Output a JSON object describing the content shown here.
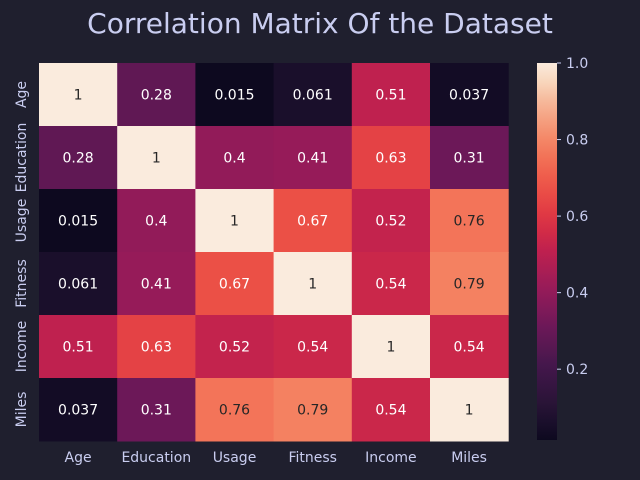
{
  "chart_data": {
    "type": "heatmap",
    "title": "Correlation Matrix Of the Dataset",
    "rows": [
      "Age",
      "Education",
      "Usage",
      "Fitness",
      "Income",
      "Miles"
    ],
    "columns": [
      "Age",
      "Education",
      "Usage",
      "Fitness",
      "Income",
      "Miles"
    ],
    "values": [
      [
        1,
        0.28,
        0.015,
        0.061,
        0.51,
        0.037
      ],
      [
        0.28,
        1,
        0.4,
        0.41,
        0.63,
        0.31
      ],
      [
        0.015,
        0.4,
        1,
        0.67,
        0.52,
        0.76
      ],
      [
        0.061,
        0.41,
        0.67,
        1,
        0.54,
        0.79
      ],
      [
        0.51,
        0.63,
        0.52,
        0.54,
        1,
        0.54
      ],
      [
        0.037,
        0.31,
        0.76,
        0.79,
        0.54,
        1
      ]
    ],
    "labels": [
      [
        "1",
        "0.28",
        "0.015",
        "0.061",
        "0.51",
        "0.037"
      ],
      [
        "0.28",
        "1",
        "0.4",
        "0.41",
        "0.63",
        "0.31"
      ],
      [
        "0.015",
        "0.4",
        "1",
        "0.67",
        "0.52",
        "0.76"
      ],
      [
        "0.061",
        "0.41",
        "0.67",
        "1",
        "0.54",
        "0.79"
      ],
      [
        "0.51",
        "0.63",
        "0.52",
        "0.54",
        "1",
        "0.54"
      ],
      [
        "0.037",
        "0.31",
        "0.76",
        "0.79",
        "0.54",
        "1"
      ]
    ],
    "colorbar": {
      "range": [
        0.015,
        1.0
      ],
      "ticks": [
        0.2,
        0.4,
        0.6,
        0.8,
        1.0
      ],
      "tick_labels": [
        "0.2",
        "0.4",
        "0.6",
        "0.8",
        "1.0"
      ],
      "colormap": "rocket"
    },
    "colors": {
      "background": "#1f1f2e",
      "text": "#c9cdf0"
    }
  }
}
